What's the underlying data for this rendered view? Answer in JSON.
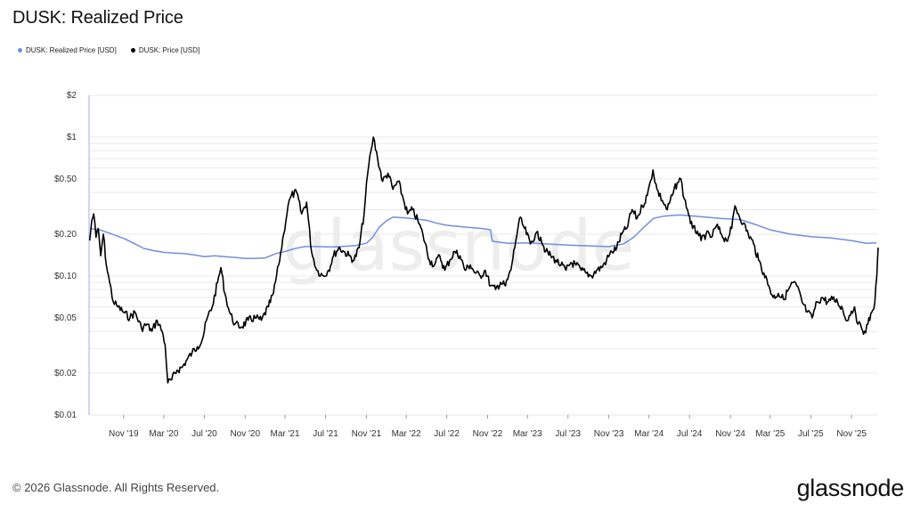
{
  "title": "DUSK: Realized Price",
  "legend": {
    "realized_label": "DUSK: Realized Price [USD]",
    "price_label": "DUSK: Price [USD]"
  },
  "watermark": "glassnode",
  "footer": "© 2026 Glassnode. All Rights Reserved.",
  "brand": "glassnode",
  "colors": {
    "realized": "#6f8fe0",
    "price": "#000000",
    "grid": "#e9e9e9"
  },
  "chart_data": {
    "type": "line",
    "y_scale": "log",
    "ylim": [
      0.01,
      2
    ],
    "y_ticks": [
      {
        "v": 2,
        "label": "$2"
      },
      {
        "v": 1,
        "label": "$1"
      },
      {
        "v": 0.5,
        "label": "$0.50"
      },
      {
        "v": 0.2,
        "label": "$0.20"
      },
      {
        "v": 0.1,
        "label": "$0.10"
      },
      {
        "v": 0.05,
        "label": "$0.05"
      },
      {
        "v": 0.02,
        "label": "$0.02"
      },
      {
        "v": 0.01,
        "label": "$0.01"
      }
    ],
    "xlim": [
      "2019-07-20",
      "2026-01-20"
    ],
    "x_ticks": [
      {
        "d": "2019-11-01",
        "label": "Nov '19"
      },
      {
        "d": "2020-03-01",
        "label": "Mar '20"
      },
      {
        "d": "2020-07-01",
        "label": "Jul '20"
      },
      {
        "d": "2020-11-01",
        "label": "Nov '20"
      },
      {
        "d": "2021-03-01",
        "label": "Mar '21"
      },
      {
        "d": "2021-07-01",
        "label": "Jul '21"
      },
      {
        "d": "2021-11-01",
        "label": "Nov '21"
      },
      {
        "d": "2022-03-01",
        "label": "Mar '22"
      },
      {
        "d": "2022-07-01",
        "label": "Jul '22"
      },
      {
        "d": "2022-11-01",
        "label": "Nov '22"
      },
      {
        "d": "2023-03-01",
        "label": "Mar '23"
      },
      {
        "d": "2023-07-01",
        "label": "Jul '23"
      },
      {
        "d": "2023-11-01",
        "label": "Nov '23"
      },
      {
        "d": "2024-03-01",
        "label": "Mar '24"
      },
      {
        "d": "2024-07-01",
        "label": "Jul '24"
      },
      {
        "d": "2024-11-01",
        "label": "Nov '24"
      },
      {
        "d": "2025-03-01",
        "label": "Mar '25"
      },
      {
        "d": "2025-07-01",
        "label": "Jul '25"
      },
      {
        "d": "2025-11-01",
        "label": "Nov '25"
      }
    ],
    "series": [
      {
        "name": "DUSK: Realized Price [USD]",
        "color": "#6f8fe0",
        "points": [
          [
            "2019-07-25",
            0.22
          ],
          [
            "2019-08-20",
            0.215
          ],
          [
            "2019-09-15",
            0.205
          ],
          [
            "2019-10-10",
            0.195
          ],
          [
            "2019-11-05",
            0.185
          ],
          [
            "2019-12-01",
            0.172
          ],
          [
            "2020-01-01",
            0.158
          ],
          [
            "2020-02-01",
            0.152
          ],
          [
            "2020-03-01",
            0.148
          ],
          [
            "2020-04-01",
            0.146
          ],
          [
            "2020-05-01",
            0.145
          ],
          [
            "2020-06-01",
            0.142
          ],
          [
            "2020-07-01",
            0.138
          ],
          [
            "2020-08-01",
            0.14
          ],
          [
            "2020-09-01",
            0.138
          ],
          [
            "2020-10-01",
            0.136
          ],
          [
            "2020-11-01",
            0.134
          ],
          [
            "2020-12-01",
            0.134
          ],
          [
            "2021-01-01",
            0.135
          ],
          [
            "2021-02-01",
            0.145
          ],
          [
            "2021-03-01",
            0.15
          ],
          [
            "2021-04-01",
            0.158
          ],
          [
            "2021-05-01",
            0.163
          ],
          [
            "2021-06-01",
            0.163
          ],
          [
            "2021-07-01",
            0.162
          ],
          [
            "2021-08-01",
            0.162
          ],
          [
            "2021-09-01",
            0.164
          ],
          [
            "2021-10-01",
            0.166
          ],
          [
            "2021-11-01",
            0.172
          ],
          [
            "2021-11-20",
            0.19
          ],
          [
            "2021-12-10",
            0.225
          ],
          [
            "2022-01-01",
            0.25
          ],
          [
            "2022-01-20",
            0.265
          ],
          [
            "2022-03-01",
            0.262
          ],
          [
            "2022-05-01",
            0.252
          ],
          [
            "2022-06-01",
            0.24
          ],
          [
            "2022-07-01",
            0.232
          ],
          [
            "2022-08-01",
            0.228
          ],
          [
            "2022-09-01",
            0.224
          ],
          [
            "2022-10-15",
            0.22
          ],
          [
            "2022-11-10",
            0.215
          ],
          [
            "2022-11-15",
            0.178
          ],
          [
            "2023-01-01",
            0.172
          ],
          [
            "2023-03-01",
            0.173
          ],
          [
            "2023-05-01",
            0.17
          ],
          [
            "2023-07-01",
            0.167
          ],
          [
            "2023-09-01",
            0.165
          ],
          [
            "2023-11-01",
            0.163
          ],
          [
            "2023-12-15",
            0.17
          ],
          [
            "2024-01-15",
            0.19
          ],
          [
            "2024-02-15",
            0.225
          ],
          [
            "2024-03-15",
            0.26
          ],
          [
            "2024-04-15",
            0.27
          ],
          [
            "2024-06-01",
            0.275
          ],
          [
            "2024-08-01",
            0.268
          ],
          [
            "2024-10-01",
            0.26
          ],
          [
            "2024-12-01",
            0.255
          ],
          [
            "2025-01-15",
            0.235
          ],
          [
            "2025-03-01",
            0.215
          ],
          [
            "2025-05-01",
            0.2
          ],
          [
            "2025-07-01",
            0.192
          ],
          [
            "2025-09-01",
            0.188
          ],
          [
            "2025-11-01",
            0.18
          ],
          [
            "2025-12-15",
            0.172
          ],
          [
            "2026-01-15",
            0.173
          ]
        ]
      },
      {
        "name": "DUSK: Price [USD]",
        "color": "#000000",
        "points": [
          [
            "2019-07-22",
            0.18
          ],
          [
            "2019-07-28",
            0.25
          ],
          [
            "2019-08-03",
            0.28
          ],
          [
            "2019-08-10",
            0.19
          ],
          [
            "2019-08-17",
            0.22
          ],
          [
            "2019-08-24",
            0.14
          ],
          [
            "2019-09-01",
            0.2
          ],
          [
            "2019-09-10",
            0.12
          ],
          [
            "2019-09-20",
            0.09
          ],
          [
            "2019-10-01",
            0.065
          ],
          [
            "2019-10-15",
            0.06
          ],
          [
            "2019-11-01",
            0.055
          ],
          [
            "2019-11-20",
            0.05
          ],
          [
            "2019-12-05",
            0.055
          ],
          [
            "2019-12-25",
            0.042
          ],
          [
            "2020-01-10",
            0.045
          ],
          [
            "2020-01-25",
            0.04
          ],
          [
            "2020-02-10",
            0.048
          ],
          [
            "2020-02-25",
            0.04
          ],
          [
            "2020-03-05",
            0.032
          ],
          [
            "2020-03-13",
            0.017
          ],
          [
            "2020-03-25",
            0.018
          ],
          [
            "2020-04-10",
            0.021
          ],
          [
            "2020-04-25",
            0.022
          ],
          [
            "2020-05-10",
            0.025
          ],
          [
            "2020-05-25",
            0.028
          ],
          [
            "2020-06-10",
            0.031
          ],
          [
            "2020-06-25",
            0.035
          ],
          [
            "2020-07-10",
            0.05
          ],
          [
            "2020-07-25",
            0.06
          ],
          [
            "2020-08-10",
            0.09
          ],
          [
            "2020-08-20",
            0.115
          ],
          [
            "2020-09-01",
            0.075
          ],
          [
            "2020-09-15",
            0.055
          ],
          [
            "2020-10-01",
            0.045
          ],
          [
            "2020-10-20",
            0.043
          ],
          [
            "2020-11-10",
            0.048
          ],
          [
            "2020-12-01",
            0.05
          ],
          [
            "2020-12-20",
            0.048
          ],
          [
            "2021-01-10",
            0.06
          ],
          [
            "2021-01-25",
            0.075
          ],
          [
            "2021-02-10",
            0.12
          ],
          [
            "2021-02-25",
            0.2
          ],
          [
            "2021-03-10",
            0.32
          ],
          [
            "2021-03-20",
            0.38
          ],
          [
            "2021-04-05",
            0.4
          ],
          [
            "2021-04-20",
            0.28
          ],
          [
            "2021-05-05",
            0.34
          ],
          [
            "2021-05-20",
            0.15
          ],
          [
            "2021-06-05",
            0.11
          ],
          [
            "2021-06-25",
            0.1
          ],
          [
            "2021-07-10",
            0.11
          ],
          [
            "2021-07-25",
            0.14
          ],
          [
            "2021-08-10",
            0.16
          ],
          [
            "2021-08-25",
            0.15
          ],
          [
            "2021-09-10",
            0.14
          ],
          [
            "2021-09-25",
            0.13
          ],
          [
            "2021-10-10",
            0.16
          ],
          [
            "2021-10-25",
            0.28
          ],
          [
            "2021-11-05",
            0.55
          ],
          [
            "2021-11-15",
            0.8
          ],
          [
            "2021-11-22",
            1.0
          ],
          [
            "2021-12-05",
            0.7
          ],
          [
            "2021-12-20",
            0.48
          ],
          [
            "2022-01-05",
            0.55
          ],
          [
            "2022-01-20",
            0.42
          ],
          [
            "2022-02-05",
            0.48
          ],
          [
            "2022-02-20",
            0.36
          ],
          [
            "2022-03-05",
            0.28
          ],
          [
            "2022-03-20",
            0.3
          ],
          [
            "2022-04-05",
            0.25
          ],
          [
            "2022-04-20",
            0.2
          ],
          [
            "2022-05-10",
            0.13
          ],
          [
            "2022-05-25",
            0.12
          ],
          [
            "2022-06-10",
            0.14
          ],
          [
            "2022-06-25",
            0.11
          ],
          [
            "2022-07-10",
            0.13
          ],
          [
            "2022-07-25",
            0.15
          ],
          [
            "2022-08-10",
            0.14
          ],
          [
            "2022-08-25",
            0.11
          ],
          [
            "2022-09-10",
            0.12
          ],
          [
            "2022-09-25",
            0.105
          ],
          [
            "2022-10-10",
            0.1
          ],
          [
            "2022-10-25",
            0.11
          ],
          [
            "2022-11-10",
            0.085
          ],
          [
            "2022-11-25",
            0.08
          ],
          [
            "2022-12-10",
            0.09
          ],
          [
            "2022-12-25",
            0.085
          ],
          [
            "2023-01-10",
            0.11
          ],
          [
            "2023-01-25",
            0.18
          ],
          [
            "2023-02-05",
            0.26
          ],
          [
            "2023-02-20",
            0.22
          ],
          [
            "2023-03-10",
            0.17
          ],
          [
            "2023-03-25",
            0.2
          ],
          [
            "2023-04-10",
            0.19
          ],
          [
            "2023-04-25",
            0.15
          ],
          [
            "2023-05-10",
            0.14
          ],
          [
            "2023-05-25",
            0.13
          ],
          [
            "2023-06-10",
            0.12
          ],
          [
            "2023-06-25",
            0.11
          ],
          [
            "2023-07-10",
            0.125
          ],
          [
            "2023-07-25",
            0.12
          ],
          [
            "2023-08-10",
            0.11
          ],
          [
            "2023-08-25",
            0.105
          ],
          [
            "2023-09-10",
            0.1
          ],
          [
            "2023-09-25",
            0.11
          ],
          [
            "2023-10-10",
            0.115
          ],
          [
            "2023-10-25",
            0.13
          ],
          [
            "2023-11-10",
            0.15
          ],
          [
            "2023-11-25",
            0.16
          ],
          [
            "2023-12-10",
            0.2
          ],
          [
            "2023-12-25",
            0.22
          ],
          [
            "2024-01-10",
            0.3
          ],
          [
            "2024-01-25",
            0.26
          ],
          [
            "2024-02-10",
            0.32
          ],
          [
            "2024-02-25",
            0.38
          ],
          [
            "2024-03-05",
            0.48
          ],
          [
            "2024-03-13",
            0.58
          ],
          [
            "2024-03-25",
            0.42
          ],
          [
            "2024-04-10",
            0.35
          ],
          [
            "2024-04-25",
            0.3
          ],
          [
            "2024-05-10",
            0.38
          ],
          [
            "2024-05-25",
            0.47
          ],
          [
            "2024-06-05",
            0.5
          ],
          [
            "2024-06-15",
            0.36
          ],
          [
            "2024-06-25",
            0.3
          ],
          [
            "2024-07-10",
            0.22
          ],
          [
            "2024-07-25",
            0.21
          ],
          [
            "2024-08-05",
            0.18
          ],
          [
            "2024-08-20",
            0.2
          ],
          [
            "2024-09-05",
            0.19
          ],
          [
            "2024-09-20",
            0.23
          ],
          [
            "2024-10-05",
            0.2
          ],
          [
            "2024-10-20",
            0.18
          ],
          [
            "2024-11-05",
            0.22
          ],
          [
            "2024-11-15",
            0.32
          ],
          [
            "2024-11-25",
            0.28
          ],
          [
            "2024-12-10",
            0.24
          ],
          [
            "2024-12-25",
            0.2
          ],
          [
            "2025-01-10",
            0.17
          ],
          [
            "2025-01-25",
            0.13
          ],
          [
            "2025-02-10",
            0.105
          ],
          [
            "2025-02-25",
            0.085
          ],
          [
            "2025-03-10",
            0.07
          ],
          [
            "2025-03-25",
            0.075
          ],
          [
            "2025-04-10",
            0.068
          ],
          [
            "2025-04-25",
            0.08
          ],
          [
            "2025-05-10",
            0.09
          ],
          [
            "2025-05-20",
            0.085
          ],
          [
            "2025-06-05",
            0.065
          ],
          [
            "2025-06-20",
            0.055
          ],
          [
            "2025-07-05",
            0.05
          ],
          [
            "2025-07-20",
            0.065
          ],
          [
            "2025-08-05",
            0.07
          ],
          [
            "2025-08-20",
            0.065
          ],
          [
            "2025-09-05",
            0.068
          ],
          [
            "2025-09-20",
            0.065
          ],
          [
            "2025-10-05",
            0.058
          ],
          [
            "2025-10-15",
            0.048
          ],
          [
            "2025-10-25",
            0.052
          ],
          [
            "2025-11-10",
            0.06
          ],
          [
            "2025-11-20",
            0.045
          ],
          [
            "2025-12-01",
            0.042
          ],
          [
            "2025-12-10",
            0.04
          ],
          [
            "2025-12-20",
            0.045
          ],
          [
            "2026-01-01",
            0.055
          ],
          [
            "2026-01-10",
            0.065
          ],
          [
            "2026-01-16",
            0.1
          ],
          [
            "2026-01-20",
            0.16
          ]
        ]
      }
    ]
  }
}
